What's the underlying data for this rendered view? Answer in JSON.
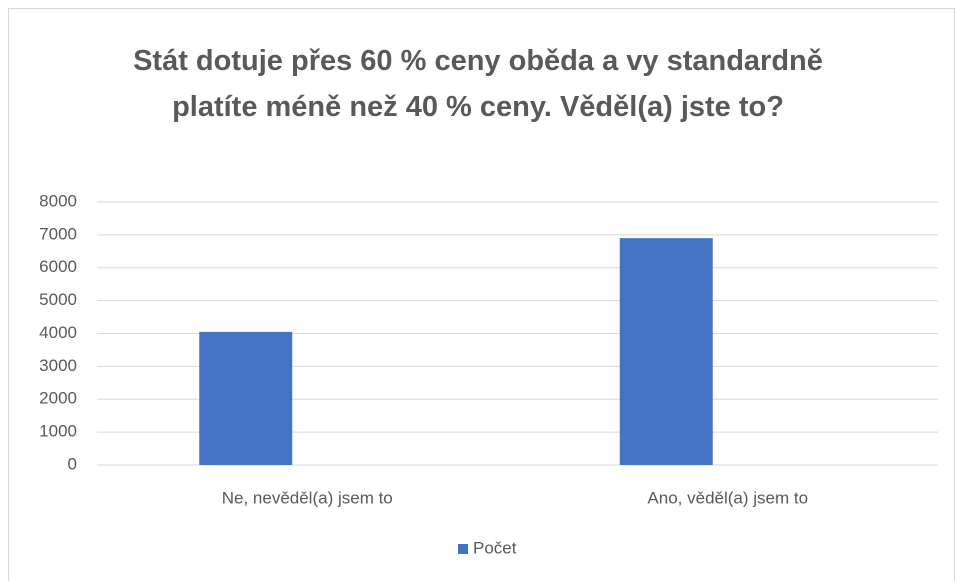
{
  "chart_data": {
    "type": "bar",
    "title": "Stát dotuje přes 60 % ceny oběda a vy standardně platíte méně než 40 % ceny. Věděl(a) jste to?",
    "categories": [
      "Ne, nevěděl(a) jsem to",
      "Ano, věděl(a) jsem to"
    ],
    "series": [
      {
        "name": "Počet",
        "color": "#4472c4",
        "values": [
          4050,
          6900
        ]
      }
    ],
    "ylim": [
      0,
      8000
    ],
    "yticks": [
      0,
      1000,
      2000,
      3000,
      4000,
      5000,
      6000,
      7000,
      8000
    ],
    "grid": true,
    "legend": "bottom"
  }
}
